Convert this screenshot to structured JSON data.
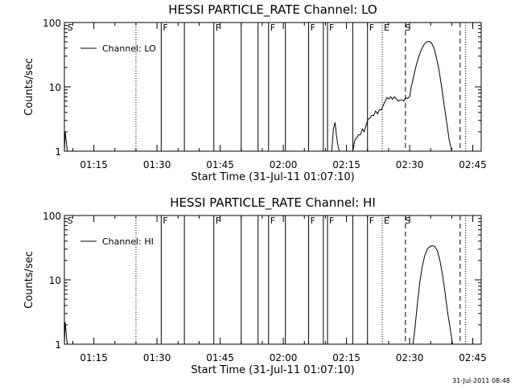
{
  "footer_date": "31-Jul-2011 08:48",
  "chart_data": [
    {
      "type": "line",
      "title": "HESSI PARTICLE_RATE Channel: LO",
      "xlabel": "Start Time (31-Jul-11 01:07:10)",
      "ylabel": "Counts/sec",
      "yscale": "log",
      "ylim": [
        1,
        100
      ],
      "xlim_minutes": [
        68,
        167
      ],
      "x_tick_labels": [
        "01:15",
        "01:30",
        "01:45",
        "02:00",
        "02:15",
        "02:30",
        "02:45"
      ],
      "x_tick_minutes": [
        75,
        90,
        105,
        120,
        135,
        150,
        165
      ],
      "y_tick_labels": [
        "1",
        "10",
        "100"
      ],
      "y_tick_values": [
        1,
        10,
        100
      ],
      "legend_position": "top-left",
      "series": [
        {
          "name": "Channel: LO",
          "x_minutes": [
            68.0,
            68.2,
            68.5,
            68.7,
            131.5,
            131.9,
            132.3,
            132.6,
            133.0,
            133.3,
            136.5,
            137.0,
            137.4,
            137.9,
            138.3,
            138.8,
            139.2,
            139.7,
            140.1,
            140.6,
            141.0,
            141.5,
            141.9,
            142.4,
            142.8,
            143.3,
            143.7,
            144.2,
            144.6,
            145.1,
            145.5,
            145.9,
            146.4,
            146.8,
            147.3,
            147.7,
            148.2,
            148.6,
            149.1,
            149.5,
            150.0,
            150.4,
            151.0,
            151.6,
            152.2,
            152.8,
            153.4,
            154.0,
            154.6,
            155.2,
            155.8,
            156.4,
            157.0,
            157.6,
            158.2,
            158.8,
            159.4,
            160.0,
            160.6,
            161.2
          ],
          "values": [
            1.0,
            2.0,
            1.3,
            1.0,
            1.0,
            2.2,
            2.8,
            1.8,
            1.2,
            1.0,
            1.0,
            1.5,
            1.6,
            1.8,
            1.8,
            2.2,
            2.0,
            2.6,
            3.1,
            3.3,
            3.6,
            3.6,
            4.2,
            3.8,
            4.4,
            4.4,
            5.1,
            6.0,
            6.8,
            6.5,
            7.0,
            6.4,
            7.0,
            6.6,
            6.0,
            6.2,
            6.3,
            6.0,
            6.8,
            6.6,
            7.0,
            10.0,
            15.0,
            22.0,
            30.0,
            38.0,
            45.0,
            50.0,
            51.0,
            48.0,
            40.0,
            28.0,
            18.0,
            10.0,
            5.2,
            2.8,
            1.5,
            1.0,
            1.0,
            1.0
          ]
        }
      ],
      "flags": [
        {
          "label": "S",
          "minute": 68.3,
          "style": "label_only"
        },
        {
          "label": "",
          "minute": 85.0,
          "style": "dotted"
        },
        {
          "label": "F",
          "minute": 91.0,
          "style": "solid"
        },
        {
          "label": "",
          "minute": 96.5,
          "style": "solid"
        },
        {
          "label": "F",
          "minute": 103.5,
          "style": "solid"
        },
        {
          "label": "",
          "minute": 110.0,
          "style": "solid"
        },
        {
          "label": "",
          "minute": 114.0,
          "style": "solid"
        },
        {
          "label": "F",
          "minute": 116.5,
          "style": "solid"
        },
        {
          "label": "",
          "minute": 120.5,
          "style": "solid"
        },
        {
          "label": "F",
          "minute": 126.0,
          "style": "solid"
        },
        {
          "label": "",
          "minute": 129.5,
          "style": "solid"
        },
        {
          "label": "F",
          "minute": 130.5,
          "style": "solid"
        },
        {
          "label": "",
          "minute": 136.5,
          "style": "solid"
        },
        {
          "label": "F",
          "minute": 140.0,
          "style": "solid"
        },
        {
          "label": "E",
          "minute": 143.5,
          "style": "dotted"
        },
        {
          "label": "S",
          "minute": 148.5,
          "style": "label_only"
        },
        {
          "label": "",
          "minute": 149.0,
          "style": "dashed"
        },
        {
          "label": "",
          "minute": 162.0,
          "style": "dashed"
        },
        {
          "label": "",
          "minute": 163.3,
          "style": "dotted"
        }
      ]
    },
    {
      "type": "line",
      "title": "HESSI PARTICLE_RATE Channel: HI",
      "xlabel": "Start Time (31-Jul-11 01:07:10)",
      "ylabel": "Counts/sec",
      "yscale": "log",
      "ylim": [
        1,
        100
      ],
      "xlim_minutes": [
        68,
        167
      ],
      "x_tick_labels": [
        "01:15",
        "01:30",
        "01:45",
        "02:00",
        "02:15",
        "02:30",
        "02:45"
      ],
      "x_tick_minutes": [
        75,
        90,
        105,
        120,
        135,
        150,
        165
      ],
      "y_tick_labels": [
        "1",
        "10",
        "100"
      ],
      "y_tick_values": [
        1,
        10,
        100
      ],
      "legend_position": "top-left",
      "series": [
        {
          "name": "Channel: HI",
          "x_minutes": [
            68.0,
            68.2,
            68.5,
            68.7,
            150.8,
            151.2,
            151.8,
            152.4,
            153.0,
            153.6,
            154.2,
            154.8,
            155.4,
            156.0,
            156.6,
            157.2,
            157.8,
            158.4,
            159.0,
            159.6,
            160.2,
            160.7
          ],
          "values": [
            1.0,
            2.2,
            1.3,
            1.0,
            1.0,
            1.6,
            4.0,
            9.0,
            16.0,
            24.0,
            30.0,
            33.0,
            34.0,
            33.0,
            28.0,
            20.0,
            12.0,
            6.5,
            3.2,
            1.8,
            1.0,
            1.0
          ]
        }
      ],
      "flags": [
        {
          "label": "S",
          "minute": 68.3,
          "style": "label_only"
        },
        {
          "label": "",
          "minute": 85.0,
          "style": "dotted"
        },
        {
          "label": "F",
          "minute": 91.0,
          "style": "solid"
        },
        {
          "label": "",
          "minute": 96.5,
          "style": "solid"
        },
        {
          "label": "F",
          "minute": 103.5,
          "style": "solid"
        },
        {
          "label": "",
          "minute": 110.0,
          "style": "solid"
        },
        {
          "label": "",
          "minute": 114.0,
          "style": "solid"
        },
        {
          "label": "F",
          "minute": 116.5,
          "style": "solid"
        },
        {
          "label": "",
          "minute": 120.5,
          "style": "solid"
        },
        {
          "label": "F",
          "minute": 126.0,
          "style": "solid"
        },
        {
          "label": "",
          "minute": 129.5,
          "style": "solid"
        },
        {
          "label": "F",
          "minute": 130.5,
          "style": "solid"
        },
        {
          "label": "",
          "minute": 136.5,
          "style": "solid"
        },
        {
          "label": "F",
          "minute": 140.0,
          "style": "solid"
        },
        {
          "label": "E",
          "minute": 143.5,
          "style": "dotted"
        },
        {
          "label": "S",
          "minute": 148.5,
          "style": "label_only"
        },
        {
          "label": "",
          "minute": 149.0,
          "style": "dashed"
        },
        {
          "label": "",
          "minute": 162.0,
          "style": "dashed"
        },
        {
          "label": "",
          "minute": 163.3,
          "style": "dotted"
        }
      ]
    }
  ]
}
